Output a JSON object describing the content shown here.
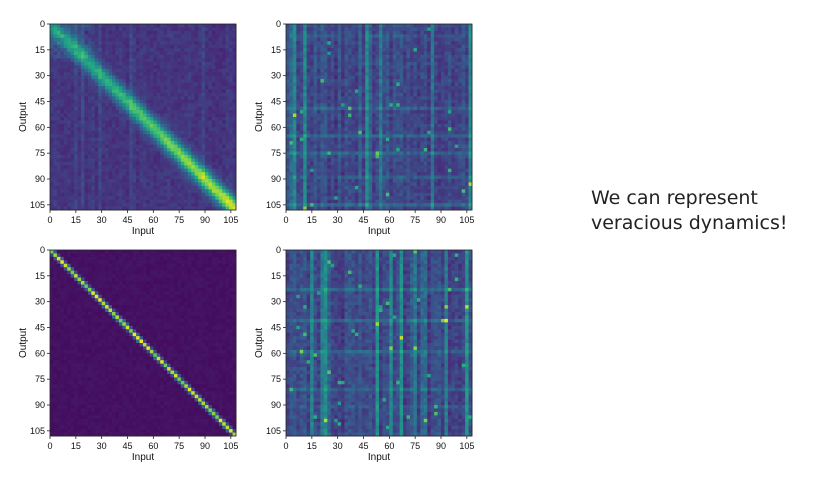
{
  "caption": {
    "line1": "We can represent",
    "line2": "veracious dynamics!"
  },
  "colormap": [
    "#440154",
    "#472d7b",
    "#3b528b",
    "#2c728e",
    "#21918c",
    "#28ae80",
    "#5ec962",
    "#addc30",
    "#fde725"
  ],
  "chart_data": [
    {
      "type": "heatmap",
      "panel": "top-left",
      "title": "",
      "xlabel": "Input",
      "ylabel": "Output",
      "xlim": [
        0,
        108
      ],
      "ylim": [
        108,
        0
      ],
      "xticks": [
        "0",
        "15",
        "30",
        "45",
        "60",
        "75",
        "90",
        "105"
      ],
      "yticks": [
        "0",
        "15",
        "30",
        "45",
        "60",
        "75",
        "90",
        "105"
      ],
      "grid": false,
      "pattern": "diffuse diagonal band, brighter toward lower-right, faint block near top-left",
      "diagonal_intensity": 0.55,
      "background_intensity": 0.12
    },
    {
      "type": "heatmap",
      "panel": "top-right",
      "title": "",
      "xlabel": "Input",
      "ylabel": "Output",
      "xlim": [
        0,
        108
      ],
      "ylim": [
        108,
        0
      ],
      "xticks": [
        "0",
        "15",
        "30",
        "45",
        "60",
        "75",
        "90",
        "105"
      ],
      "yticks": [
        "0",
        "15",
        "30",
        "45",
        "60",
        "75",
        "90",
        "105"
      ],
      "grid": false,
      "pattern": "vertical column structure, no clear diagonal",
      "diagonal_intensity": 0.0,
      "background_intensity": 0.2
    },
    {
      "type": "heatmap",
      "panel": "bottom-left",
      "title": "",
      "xlabel": "Input",
      "ylabel": "Output",
      "xlim": [
        0,
        108
      ],
      "ylim": [
        108,
        0
      ],
      "xticks": [
        "0",
        "15",
        "30",
        "45",
        "60",
        "75",
        "90",
        "105"
      ],
      "yticks": [
        "0",
        "15",
        "30",
        "45",
        "60",
        "75",
        "90",
        "105"
      ],
      "grid": false,
      "pattern": "sharp bright diagonal (identity-like), dark background",
      "diagonal_intensity": 0.9,
      "background_intensity": 0.03
    },
    {
      "type": "heatmap",
      "panel": "bottom-right",
      "title": "",
      "xlabel": "Input",
      "ylabel": "Output",
      "xlim": [
        0,
        108
      ],
      "ylim": [
        108,
        0
      ],
      "xticks": [
        "0",
        "15",
        "30",
        "45",
        "60",
        "75",
        "90",
        "105"
      ],
      "yticks": [
        "0",
        "15",
        "30",
        "45",
        "60",
        "75",
        "90",
        "105"
      ],
      "grid": false,
      "pattern": "vertical column structure with scattered bright spots, no clear diagonal",
      "diagonal_intensity": 0.0,
      "background_intensity": 0.18
    }
  ]
}
